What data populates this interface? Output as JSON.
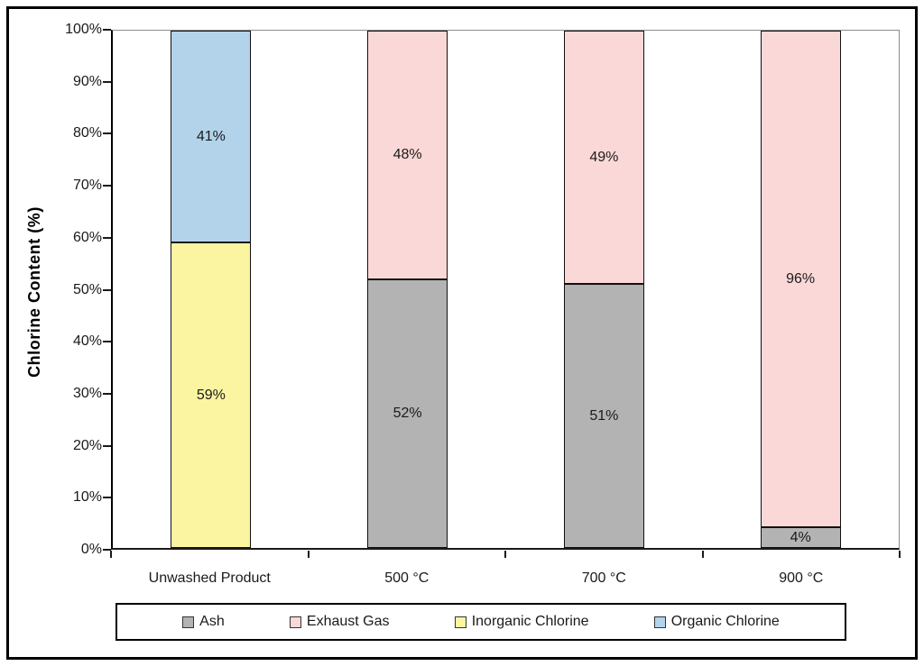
{
  "chart_data": {
    "type": "bar",
    "variant": "stacked-column",
    "title": "",
    "xlabel": "",
    "ylabel": "Chlorine Content (%)",
    "ylim": [
      0,
      100
    ],
    "ytick_step": 10,
    "ytick_suffix": "%",
    "grid": false,
    "legend_position": "bottom",
    "categories": [
      "Unwashed Product",
      "500 °C",
      "700 °C",
      "900 °C"
    ],
    "series": [
      {
        "name": "Ash",
        "color": "#b3b3b3",
        "values": [
          0,
          52,
          51,
          4
        ]
      },
      {
        "name": "Exhaust Gas",
        "color": "#fbd8d8",
        "values": [
          0,
          48,
          49,
          96
        ]
      },
      {
        "name": "Inorganic Chlorine",
        "color": "#fbf5a2",
        "values": [
          59,
          0,
          0,
          0
        ]
      },
      {
        "name": "Organic Chlorine",
        "color": "#b3d3eb",
        "values": [
          41,
          0,
          0,
          0
        ]
      }
    ],
    "data_labels": {
      "Unwashed Product": {
        "Inorganic Chlorine": "59%",
        "Organic Chlorine": "41%"
      },
      "500 °C": {
        "Ash": "52%",
        "Exhaust Gas": "48%"
      },
      "700 °C": {
        "Ash": "51%",
        "Exhaust Gas": "49%"
      },
      "900 °C": {
        "Ash": "4%",
        "Exhaust Gas": "96%"
      }
    }
  },
  "colors": {
    "page_border": "#000000",
    "plot_frame": "#8c8c8c",
    "axis_line": "#000000",
    "text": "#1a1a1a"
  }
}
